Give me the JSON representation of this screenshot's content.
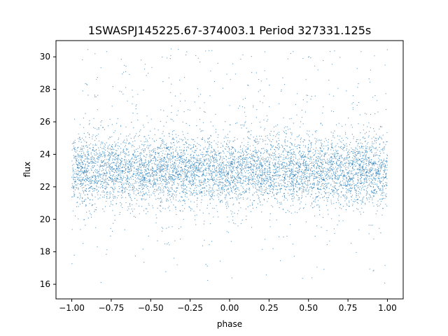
{
  "chart_data": {
    "type": "scatter",
    "title": "1SWASPJ145225.67-374003.1 Period 327331.125s",
    "xlabel": "phase",
    "ylabel": "flux",
    "xlim": [
      -1.1,
      1.1
    ],
    "ylim": [
      15.1,
      31.0
    ],
    "xticks": [
      -1.0,
      -0.75,
      -0.5,
      -0.25,
      0.0,
      0.25,
      0.5,
      0.75,
      1.0
    ],
    "xtick_labels": [
      "−1.00",
      "−0.75",
      "−0.50",
      "−0.25",
      "0.00",
      "0.25",
      "0.50",
      "0.75",
      "1.00"
    ],
    "yticks": [
      16,
      18,
      20,
      22,
      24,
      26,
      28,
      30
    ],
    "ytick_labels": [
      "16",
      "18",
      "20",
      "22",
      "24",
      "26",
      "28",
      "30"
    ],
    "grid": false,
    "legend": "none",
    "point_color": "#1f77b4",
    "x_range": [
      -1.0,
      1.0
    ],
    "y_core_range": [
      21.0,
      25.2
    ],
    "y_spread_range": [
      15.9,
      30.5
    ],
    "y_center": 23.0
  }
}
